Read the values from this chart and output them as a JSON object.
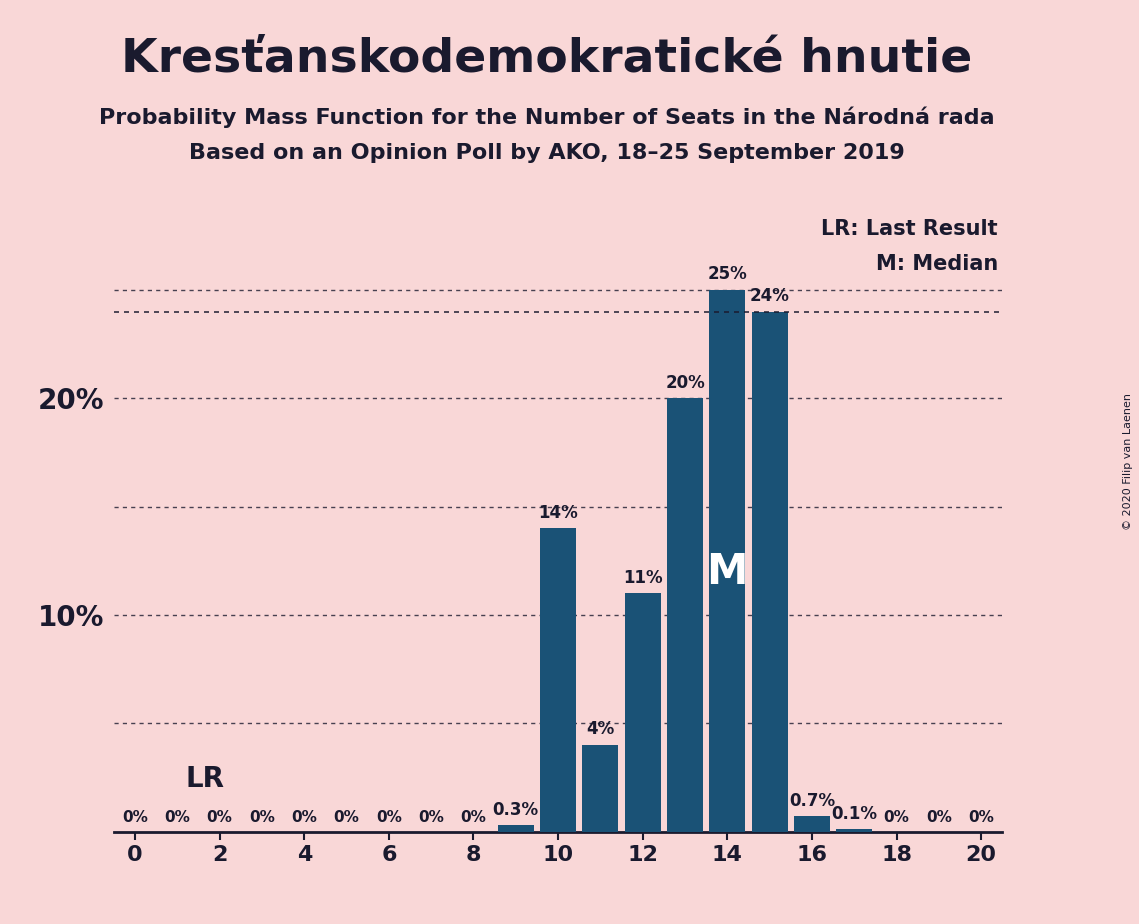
{
  "title": "Kresťanskodemokratické hnutie",
  "subtitle1": "Probability Mass Function for the Number of Seats in the Národná rada",
  "subtitle2": "Based on an Opinion Poll by AKO, 18–25 September 2019",
  "copyright": "© 2020 Filip van Laenen",
  "seats": [
    0,
    1,
    2,
    3,
    4,
    5,
    6,
    7,
    8,
    9,
    10,
    11,
    12,
    13,
    14,
    15,
    16,
    17,
    18,
    19,
    20
  ],
  "probabilities": [
    0.0,
    0.0,
    0.0,
    0.0,
    0.0,
    0.0,
    0.0,
    0.0,
    0.0,
    0.3,
    14.0,
    4.0,
    11.0,
    20.0,
    25.0,
    24.0,
    0.7,
    0.1,
    0.0,
    0.0,
    0.0
  ],
  "bar_color": "#1a5276",
  "bg_color": "#f9d7d7",
  "text_color": "#1a1a2e",
  "ytick_labels_show": {
    "10": "10%",
    "20": "20%"
  },
  "grid_levels": [
    5,
    10,
    15,
    20,
    25
  ],
  "lr_label": "LR",
  "median_seat": 14,
  "median_label": "M",
  "median_line_y": 24.0,
  "lr_line_y": 5.0,
  "xlim": [
    -0.5,
    20.5
  ],
  "ylim": [
    0,
    29
  ],
  "xticks": [
    0,
    2,
    4,
    6,
    8,
    10,
    12,
    14,
    16,
    18,
    20
  ],
  "ytick_positions": [
    0,
    5,
    10,
    15,
    20,
    25
  ],
  "lr_legend": "LR: Last Result",
  "m_legend": "M: Median"
}
